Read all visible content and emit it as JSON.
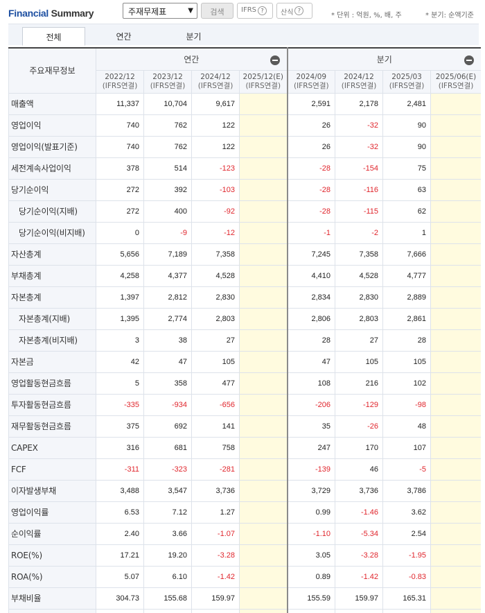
{
  "header": {
    "title_part1": "Financial",
    "title_part2": "Summary",
    "select_value": "주재무제표",
    "search_label": "검색",
    "ifrs_label": "IFRS",
    "calc_label": "산식",
    "unit_note": "* 단위 : 억원, %, 배, 주",
    "quarter_note": "* 분기: 순액기준"
  },
  "tabs": [
    "전체",
    "연간",
    "분기"
  ],
  "table": {
    "corner_label": "주요재무정보",
    "annual_label": "연간",
    "quarterly_label": "분기",
    "periods": [
      {
        "date": "2022/12",
        "type": "(IFRS연결)"
      },
      {
        "date": "2023/12",
        "type": "(IFRS연결)"
      },
      {
        "date": "2024/12",
        "type": "(IFRS연결)"
      },
      {
        "date": "2025/12(E)",
        "type": "(IFRS연결)"
      },
      {
        "date": "2024/09",
        "type": "(IFRS연결)"
      },
      {
        "date": "2024/12",
        "type": "(IFRS연결)"
      },
      {
        "date": "2025/03",
        "type": "(IFRS연결)"
      },
      {
        "date": "2025/06(E)",
        "type": "(IFRS연결)"
      }
    ],
    "rows": [
      {
        "label": "매출액",
        "sub": false,
        "values": [
          "11,337",
          "10,704",
          "9,617",
          "",
          "2,591",
          "2,178",
          "2,481",
          ""
        ]
      },
      {
        "label": "영업이익",
        "sub": false,
        "values": [
          "740",
          "762",
          "122",
          "",
          "26",
          "-32",
          "90",
          ""
        ]
      },
      {
        "label": "영업이익(발표기준)",
        "sub": false,
        "values": [
          "740",
          "762",
          "122",
          "",
          "26",
          "-32",
          "90",
          ""
        ]
      },
      {
        "label": "세전계속사업이익",
        "sub": false,
        "values": [
          "378",
          "514",
          "-123",
          "",
          "-28",
          "-154",
          "75",
          ""
        ]
      },
      {
        "label": "당기순이익",
        "sub": false,
        "values": [
          "272",
          "392",
          "-103",
          "",
          "-28",
          "-116",
          "63",
          ""
        ]
      },
      {
        "label": "당기순이익(지배)",
        "sub": true,
        "values": [
          "272",
          "400",
          "-92",
          "",
          "-28",
          "-115",
          "62",
          ""
        ]
      },
      {
        "label": "당기순이익(비지배)",
        "sub": true,
        "values": [
          "0",
          "-9",
          "-12",
          "",
          "-1",
          "-2",
          "1",
          ""
        ]
      },
      {
        "label": "자산총계",
        "sub": false,
        "values": [
          "5,656",
          "7,189",
          "7,358",
          "",
          "7,245",
          "7,358",
          "7,666",
          ""
        ]
      },
      {
        "label": "부채총계",
        "sub": false,
        "values": [
          "4,258",
          "4,377",
          "4,528",
          "",
          "4,410",
          "4,528",
          "4,777",
          ""
        ]
      },
      {
        "label": "자본총계",
        "sub": false,
        "values": [
          "1,397",
          "2,812",
          "2,830",
          "",
          "2,834",
          "2,830",
          "2,889",
          ""
        ]
      },
      {
        "label": "자본총계(지배)",
        "sub": true,
        "values": [
          "1,395",
          "2,774",
          "2,803",
          "",
          "2,806",
          "2,803",
          "2,861",
          ""
        ]
      },
      {
        "label": "자본총계(비지배)",
        "sub": true,
        "values": [
          "3",
          "38",
          "27",
          "",
          "28",
          "27",
          "28",
          ""
        ]
      },
      {
        "label": "자본금",
        "sub": false,
        "values": [
          "42",
          "47",
          "105",
          "",
          "47",
          "105",
          "105",
          ""
        ]
      },
      {
        "label": "영업활동현금흐름",
        "sub": false,
        "values": [
          "5",
          "358",
          "477",
          "",
          "108",
          "216",
          "102",
          ""
        ]
      },
      {
        "label": "투자활동현금흐름",
        "sub": false,
        "values": [
          "-335",
          "-934",
          "-656",
          "",
          "-206",
          "-129",
          "-98",
          ""
        ]
      },
      {
        "label": "재무활동현금흐름",
        "sub": false,
        "values": [
          "375",
          "692",
          "141",
          "",
          "35",
          "-26",
          "48",
          ""
        ]
      },
      {
        "label": "CAPEX",
        "sub": false,
        "values": [
          "316",
          "681",
          "758",
          "",
          "247",
          "170",
          "107",
          ""
        ]
      },
      {
        "label": "FCF",
        "sub": false,
        "values": [
          "-311",
          "-323",
          "-281",
          "",
          "-139",
          "46",
          "-5",
          ""
        ]
      },
      {
        "label": "이자발생부채",
        "sub": false,
        "values": [
          "3,488",
          "3,547",
          "3,736",
          "",
          "3,729",
          "3,736",
          "3,786",
          ""
        ]
      },
      {
        "label": "영업이익률",
        "sub": false,
        "values": [
          "6.53",
          "7.12",
          "1.27",
          "",
          "0.99",
          "-1.46",
          "3.62",
          ""
        ]
      },
      {
        "label": "순이익률",
        "sub": false,
        "values": [
          "2.40",
          "3.66",
          "-1.07",
          "",
          "-1.10",
          "-5.34",
          "2.54",
          ""
        ]
      },
      {
        "label": "ROE(%)",
        "sub": false,
        "values": [
          "17.21",
          "19.20",
          "-3.28",
          "",
          "3.05",
          "-3.28",
          "-1.95",
          ""
        ]
      },
      {
        "label": "ROA(%)",
        "sub": false,
        "values": [
          "5.07",
          "6.10",
          "-1.42",
          "",
          "0.89",
          "-1.42",
          "-0.83",
          ""
        ]
      },
      {
        "label": "부채비율",
        "sub": false,
        "values": [
          "304.73",
          "155.68",
          "159.97",
          "",
          "155.59",
          "159.97",
          "165.31",
          ""
        ]
      },
      {
        "label": "",
        "sub": false,
        "values": [
          "",
          "",
          "",
          "",
          "",
          "",
          "",
          ""
        ]
      }
    ]
  },
  "colors": {
    "title_blue": "#1d4fa1",
    "negative_red": "#e0252c",
    "estimate_bg": "#fffbdf",
    "header_bg": "#f4f6fa"
  }
}
